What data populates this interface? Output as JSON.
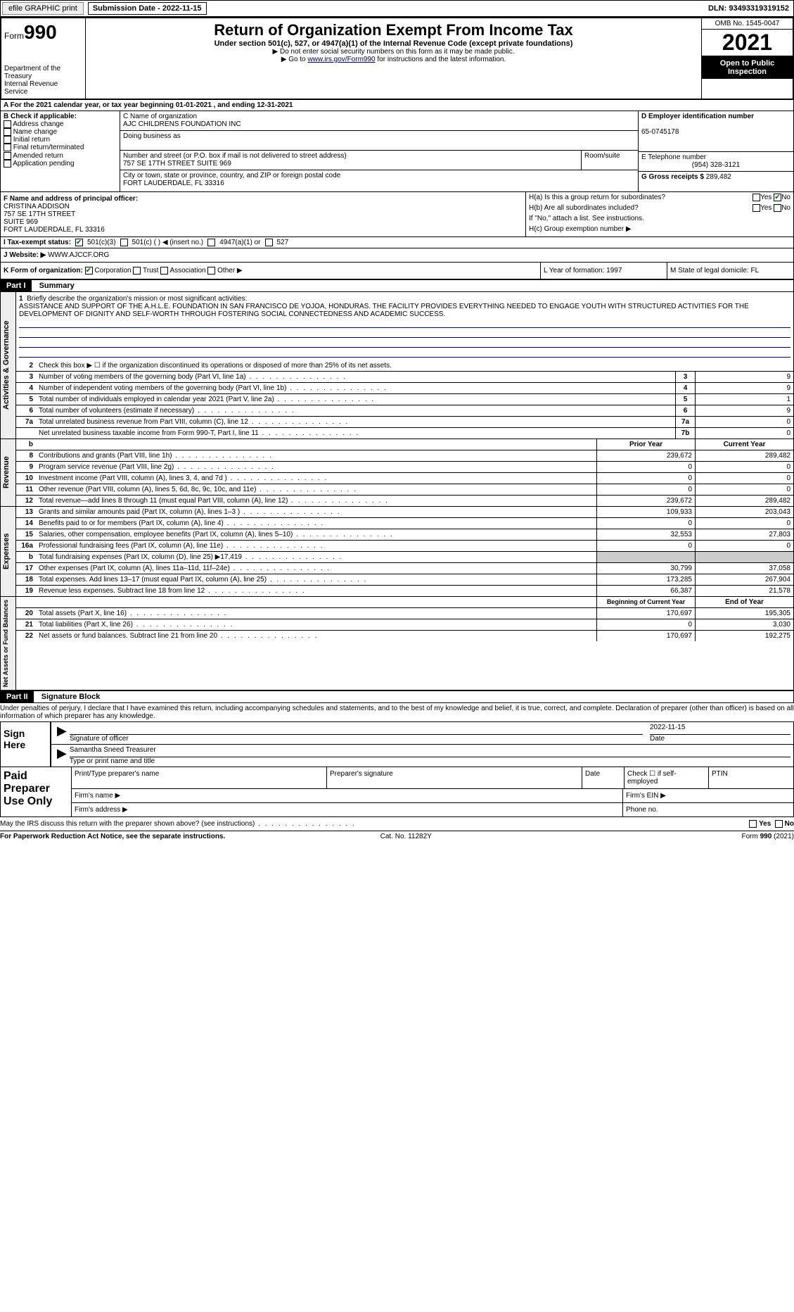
{
  "top": {
    "efile": "efile GRAPHIC print",
    "submission": "Submission Date - 2022-11-15",
    "dln": "DLN: 93493319319152"
  },
  "header": {
    "form_word": "Form",
    "form_num": "990",
    "title": "Return of Organization Exempt From Income Tax",
    "subtitle": "Under section 501(c), 527, or 4947(a)(1) of the Internal Revenue Code (except private foundations)",
    "note1": "▶ Do not enter social security numbers on this form as it may be made public.",
    "note2_pre": "▶ Go to ",
    "note2_link": "www.irs.gov/Form990",
    "note2_post": " for instructions and the latest information.",
    "dept": "Department of the Treasury",
    "irs": "Internal Revenue Service",
    "omb": "OMB No. 1545-0047",
    "year": "2021",
    "open": "Open to Public Inspection"
  },
  "a_line": "A For the 2021 calendar year, or tax year beginning 01-01-2021    , and ending 12-31-2021",
  "b": {
    "label": "B Check if applicable:",
    "opts": [
      "Address change",
      "Name change",
      "Initial return",
      "Final return/terminated",
      "Amended return",
      "Application pending"
    ]
  },
  "c": {
    "name_label": "C Name of organization",
    "name": "AJC CHILDRENS FOUNDATION INC",
    "dba_label": "Doing business as",
    "addr_label": "Number and street (or P.O. box if mail is not delivered to street address)",
    "room_label": "Room/suite",
    "addr": "757 SE 17TH STREET SUITE 969",
    "city_label": "City or town, state or province, country, and ZIP or foreign postal code",
    "city": "FORT LAUDERDALE, FL  33316"
  },
  "d": {
    "label": "D Employer identification number",
    "val": "65-0745178"
  },
  "e": {
    "label": "E Telephone number",
    "val": "(954) 328-3121"
  },
  "g": {
    "label": "G Gross receipts $",
    "val": "289,482"
  },
  "f": {
    "label": "F  Name and address of principal officer:",
    "name": "CRISTINA ADDISON",
    "addr1": "757 SE 17TH STREET",
    "addr2": "SUITE 969",
    "city": "FORT LAUDERDALE, FL  33316"
  },
  "h": {
    "a": "H(a)  Is this a group return for subordinates?",
    "b": "H(b)  Are all subordinates included?",
    "note": "If \"No,\" attach a list. See instructions.",
    "c": "H(c)  Group exemption number ▶"
  },
  "i": {
    "label": "I   Tax-exempt status:",
    "o1": "501(c)(3)",
    "o2": "501(c) (  ) ◀ (insert no.)",
    "o3": "4947(a)(1) or",
    "o4": "527"
  },
  "j": {
    "label": "J   Website: ▶",
    "val": "  WWW.AJCCF.ORG"
  },
  "k": {
    "label": "K Form of organization:",
    "o1": "Corporation",
    "o2": "Trust",
    "o3": "Association",
    "o4": "Other ▶",
    "l": "L Year of formation: 1997",
    "m": "M State of legal domicile: FL"
  },
  "part1": {
    "num": "Part I",
    "title": "Summary"
  },
  "summary": {
    "q1": "Briefly describe the organization's mission or most significant activities:",
    "mission": "ASSISTANCE AND SUPPORT OF THE A.H.L.E. FOUNDATION IN SAN FRANCISCO DE YOJOA, HONDURAS. THE FACILITY PROVIDES EVERYTHING NEEDED TO ENGAGE YOUTH WITH STRUCTURED ACTIVITIES FOR THE DEVELOPMENT OF DIGNITY AND SELF-WORTH THROUGH FOSTERING SOCIAL CONNECTEDNESS AND ACADEMIC SUCCESS.",
    "q2": "Check this box ▶ ☐  if the organization discontinued its operations or disposed of more than 25% of its net assets.",
    "lines": [
      {
        "n": "3",
        "d": "Number of voting members of the governing body (Part VI, line 1a)",
        "b": "3",
        "v": "9"
      },
      {
        "n": "4",
        "d": "Number of independent voting members of the governing body (Part VI, line 1b)",
        "b": "4",
        "v": "9"
      },
      {
        "n": "5",
        "d": "Total number of individuals employed in calendar year 2021 (Part V, line 2a)",
        "b": "5",
        "v": "1"
      },
      {
        "n": "6",
        "d": "Total number of volunteers (estimate if necessary)",
        "b": "6",
        "v": "9"
      },
      {
        "n": "7a",
        "d": "Total unrelated business revenue from Part VIII, column (C), line 12",
        "b": "7a",
        "v": "0"
      },
      {
        "n": "",
        "d": "Net unrelated business taxable income from Form 990-T, Part I, line 11",
        "b": "7b",
        "v": "0"
      }
    ]
  },
  "cols": {
    "prior": "Prior Year",
    "current": "Current Year"
  },
  "revenue": [
    {
      "n": "8",
      "d": "Contributions and grants (Part VIII, line 1h)",
      "p": "239,672",
      "c": "289,482"
    },
    {
      "n": "9",
      "d": "Program service revenue (Part VIII, line 2g)",
      "p": "0",
      "c": "0"
    },
    {
      "n": "10",
      "d": "Investment income (Part VIII, column (A), lines 3, 4, and 7d )",
      "p": "0",
      "c": "0"
    },
    {
      "n": "11",
      "d": "Other revenue (Part VIII, column (A), lines 5, 6d, 8c, 9c, 10c, and 11e)",
      "p": "0",
      "c": "0"
    },
    {
      "n": "12",
      "d": "Total revenue—add lines 8 through 11 (must equal Part VIII, column (A), line 12)",
      "p": "239,672",
      "c": "289,482"
    }
  ],
  "expenses": [
    {
      "n": "13",
      "d": "Grants and similar amounts paid (Part IX, column (A), lines 1–3 )",
      "p": "109,933",
      "c": "203,043"
    },
    {
      "n": "14",
      "d": "Benefits paid to or for members (Part IX, column (A), line 4)",
      "p": "0",
      "c": "0"
    },
    {
      "n": "15",
      "d": "Salaries, other compensation, employee benefits (Part IX, column (A), lines 5–10)",
      "p": "32,553",
      "c": "27,803"
    },
    {
      "n": "16a",
      "d": "Professional fundraising fees (Part IX, column (A), line 11e)",
      "p": "0",
      "c": "0"
    },
    {
      "n": "b",
      "d": "Total fundraising expenses (Part IX, column (D), line 25) ▶17,419",
      "p": "",
      "c": "",
      "shaded": true
    },
    {
      "n": "17",
      "d": "Other expenses (Part IX, column (A), lines 11a–11d, 11f–24e)",
      "p": "30,799",
      "c": "37,058"
    },
    {
      "n": "18",
      "d": "Total expenses. Add lines 13–17 (must equal Part IX, column (A), line 25)",
      "p": "173,285",
      "c": "267,904"
    },
    {
      "n": "19",
      "d": "Revenue less expenses. Subtract line 18 from line 12",
      "p": "66,387",
      "c": "21,578"
    }
  ],
  "netcols": {
    "beg": "Beginning of Current Year",
    "end": "End of Year"
  },
  "net": [
    {
      "n": "20",
      "d": "Total assets (Part X, line 16)",
      "p": "170,697",
      "c": "195,305"
    },
    {
      "n": "21",
      "d": "Total liabilities (Part X, line 26)",
      "p": "0",
      "c": "3,030"
    },
    {
      "n": "22",
      "d": "Net assets or fund balances. Subtract line 21 from line 20",
      "p": "170,697",
      "c": "192,275"
    }
  ],
  "vlabels": {
    "gov": "Activities & Governance",
    "rev": "Revenue",
    "exp": "Expenses",
    "net": "Net Assets or Fund Balances"
  },
  "part2": {
    "num": "Part II",
    "title": "Signature Block"
  },
  "sig": {
    "perjury": "Under penalties of perjury, I declare that I have examined this return, including accompanying schedules and statements, and to the best of my knowledge and belief, it is true, correct, and complete. Declaration of preparer (other than officer) is based on all information of which preparer has any knowledge.",
    "sign_here": "Sign Here",
    "sig_label": "Signature of officer",
    "date": "2022-11-15",
    "date_label": "Date",
    "name": "Samantha Sneed  Treasurer",
    "name_label": "Type or print name and title",
    "paid": "Paid Preparer Use Only",
    "p_name": "Print/Type preparer's name",
    "p_sig": "Preparer's signature",
    "p_date": "Date",
    "p_check": "Check ☐ if self-employed",
    "ptin": "PTIN",
    "firm_name": "Firm's name    ▶",
    "firm_ein": "Firm's EIN ▶",
    "firm_addr": "Firm's address ▶",
    "phone": "Phone no.",
    "discuss": "May the IRS discuss this return with the preparer shown above? (see instructions)",
    "yes": "Yes",
    "no": "No"
  },
  "footer": {
    "left": "For Paperwork Reduction Act Notice, see the separate instructions.",
    "mid": "Cat. No. 11282Y",
    "right": "Form 990 (2021)"
  }
}
